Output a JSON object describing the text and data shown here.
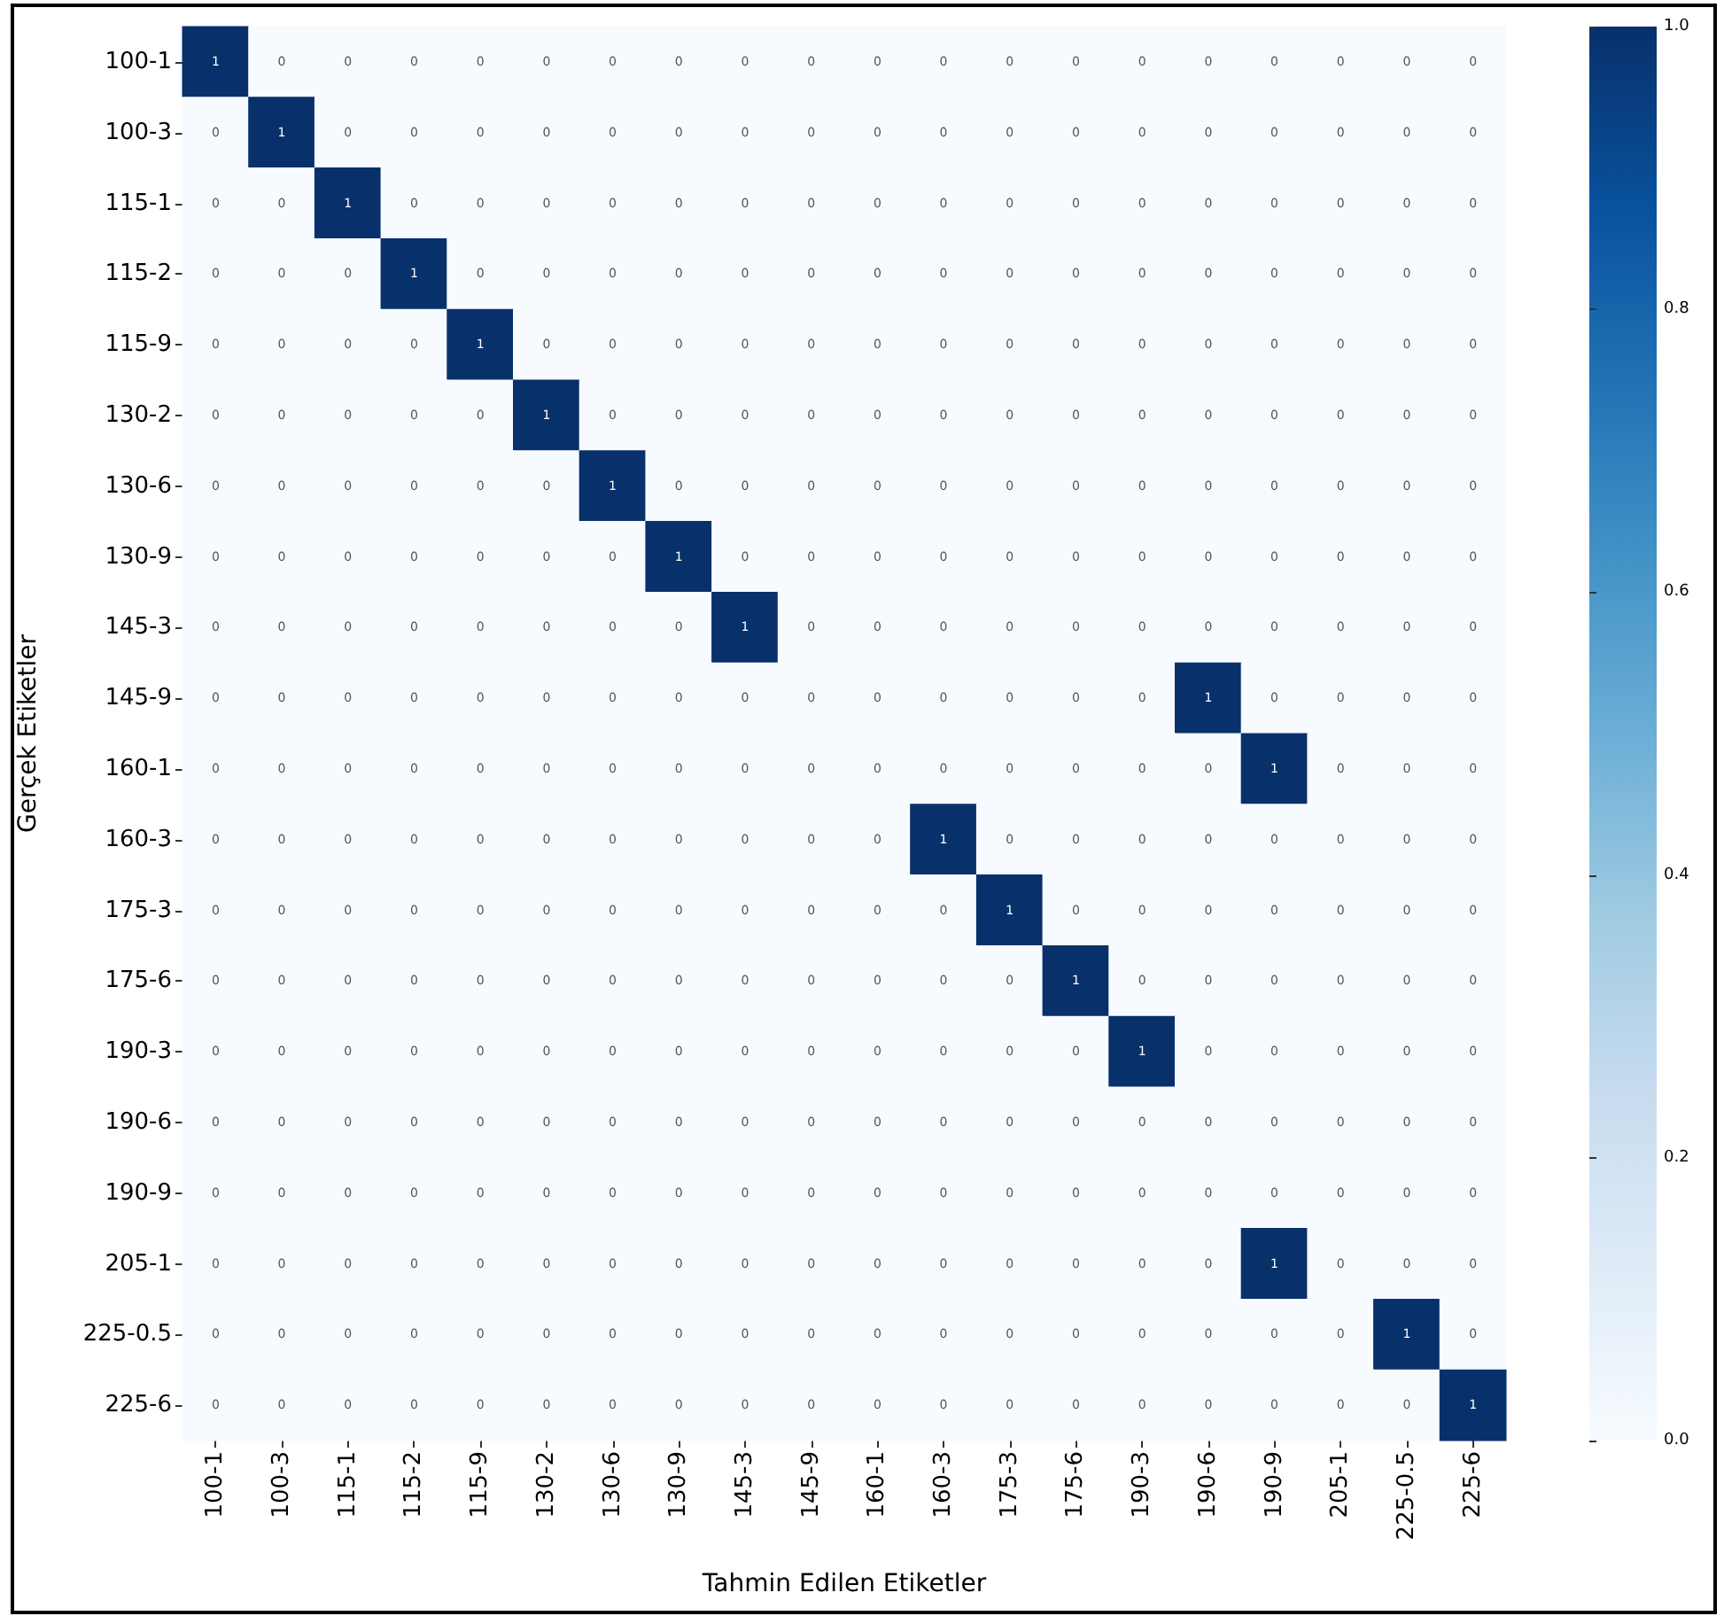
{
  "chart_data": {
    "type": "heatmap",
    "xlabel": "Tahmin Edilen Etiketler",
    "ylabel": "Gerçek Etiketler",
    "categories": [
      "100-1",
      "100-3",
      "115-1",
      "115-2",
      "115-9",
      "130-2",
      "130-6",
      "130-9",
      "145-3",
      "145-9",
      "160-1",
      "160-3",
      "175-3",
      "175-6",
      "190-3",
      "190-6",
      "190-9",
      "205-1",
      "225-0.5",
      "225-6"
    ],
    "y_categories": [
      "100-1",
      "100-3",
      "115-1",
      "115-2",
      "115-9",
      "130-2",
      "130-6",
      "130-9",
      "145-3",
      "145-9",
      "160-1",
      "160-3",
      "175-3",
      "175-6",
      "190-3",
      "190-6",
      "190-9",
      "205-1",
      "225-0.5",
      "225-6"
    ],
    "cells": [
      [
        1,
        0,
        0,
        0,
        0,
        0,
        0,
        0,
        0,
        0,
        0,
        0,
        0,
        0,
        0,
        0,
        0,
        0,
        0,
        0
      ],
      [
        0,
        1,
        0,
        0,
        0,
        0,
        0,
        0,
        0,
        0,
        0,
        0,
        0,
        0,
        0,
        0,
        0,
        0,
        0,
        0
      ],
      [
        0,
        0,
        1,
        0,
        0,
        0,
        0,
        0,
        0,
        0,
        0,
        0,
        0,
        0,
        0,
        0,
        0,
        0,
        0,
        0
      ],
      [
        0,
        0,
        0,
        1,
        0,
        0,
        0,
        0,
        0,
        0,
        0,
        0,
        0,
        0,
        0,
        0,
        0,
        0,
        0,
        0
      ],
      [
        0,
        0,
        0,
        0,
        1,
        0,
        0,
        0,
        0,
        0,
        0,
        0,
        0,
        0,
        0,
        0,
        0,
        0,
        0,
        0
      ],
      [
        0,
        0,
        0,
        0,
        0,
        1,
        0,
        0,
        0,
        0,
        0,
        0,
        0,
        0,
        0,
        0,
        0,
        0,
        0,
        0
      ],
      [
        0,
        0,
        0,
        0,
        0,
        0,
        1,
        0,
        0,
        0,
        0,
        0,
        0,
        0,
        0,
        0,
        0,
        0,
        0,
        0
      ],
      [
        0,
        0,
        0,
        0,
        0,
        0,
        0,
        1,
        0,
        0,
        0,
        0,
        0,
        0,
        0,
        0,
        0,
        0,
        0,
        0
      ],
      [
        0,
        0,
        0,
        0,
        0,
        0,
        0,
        0,
        1,
        0,
        0,
        0,
        0,
        0,
        0,
        0,
        0,
        0,
        0,
        0
      ],
      [
        0,
        0,
        0,
        0,
        0,
        0,
        0,
        0,
        0,
        0,
        0,
        0,
        0,
        0,
        0,
        1,
        0,
        0,
        0,
        0
      ],
      [
        0,
        0,
        0,
        0,
        0,
        0,
        0,
        0,
        0,
        0,
        0,
        0,
        0,
        0,
        0,
        0,
        1,
        0,
        0,
        0
      ],
      [
        0,
        0,
        0,
        0,
        0,
        0,
        0,
        0,
        0,
        0,
        0,
        1,
        0,
        0,
        0,
        0,
        0,
        0,
        0,
        0
      ],
      [
        0,
        0,
        0,
        0,
        0,
        0,
        0,
        0,
        0,
        0,
        0,
        0,
        1,
        0,
        0,
        0,
        0,
        0,
        0,
        0
      ],
      [
        0,
        0,
        0,
        0,
        0,
        0,
        0,
        0,
        0,
        0,
        0,
        0,
        0,
        1,
        0,
        0,
        0,
        0,
        0,
        0
      ],
      [
        0,
        0,
        0,
        0,
        0,
        0,
        0,
        0,
        0,
        0,
        0,
        0,
        0,
        0,
        1,
        0,
        0,
        0,
        0,
        0
      ],
      [
        0,
        0,
        0,
        0,
        0,
        0,
        0,
        0,
        0,
        0,
        0,
        0,
        0,
        0,
        0,
        0,
        0,
        0,
        0,
        0
      ],
      [
        0,
        0,
        0,
        0,
        0,
        0,
        0,
        0,
        0,
        0,
        0,
        0,
        0,
        0,
        0,
        0,
        0,
        0,
        0,
        0
      ],
      [
        0,
        0,
        0,
        0,
        0,
        0,
        0,
        0,
        0,
        0,
        0,
        0,
        0,
        0,
        0,
        0,
        1,
        0,
        0,
        0
      ],
      [
        0,
        0,
        0,
        0,
        0,
        0,
        0,
        0,
        0,
        0,
        0,
        0,
        0,
        0,
        0,
        0,
        0,
        0,
        1,
        0
      ],
      [
        0,
        0,
        0,
        0,
        0,
        0,
        0,
        0,
        0,
        0,
        0,
        0,
        0,
        0,
        0,
        0,
        0,
        0,
        0,
        1
      ]
    ],
    "clim": [
      0,
      1
    ],
    "cticks": [
      {
        "value": 0,
        "label": "0.0"
      },
      0.2,
      0.4,
      0.6,
      0.8,
      {
        "value": 1,
        "label": "1.0"
      }
    ],
    "data_labels": true
  }
}
